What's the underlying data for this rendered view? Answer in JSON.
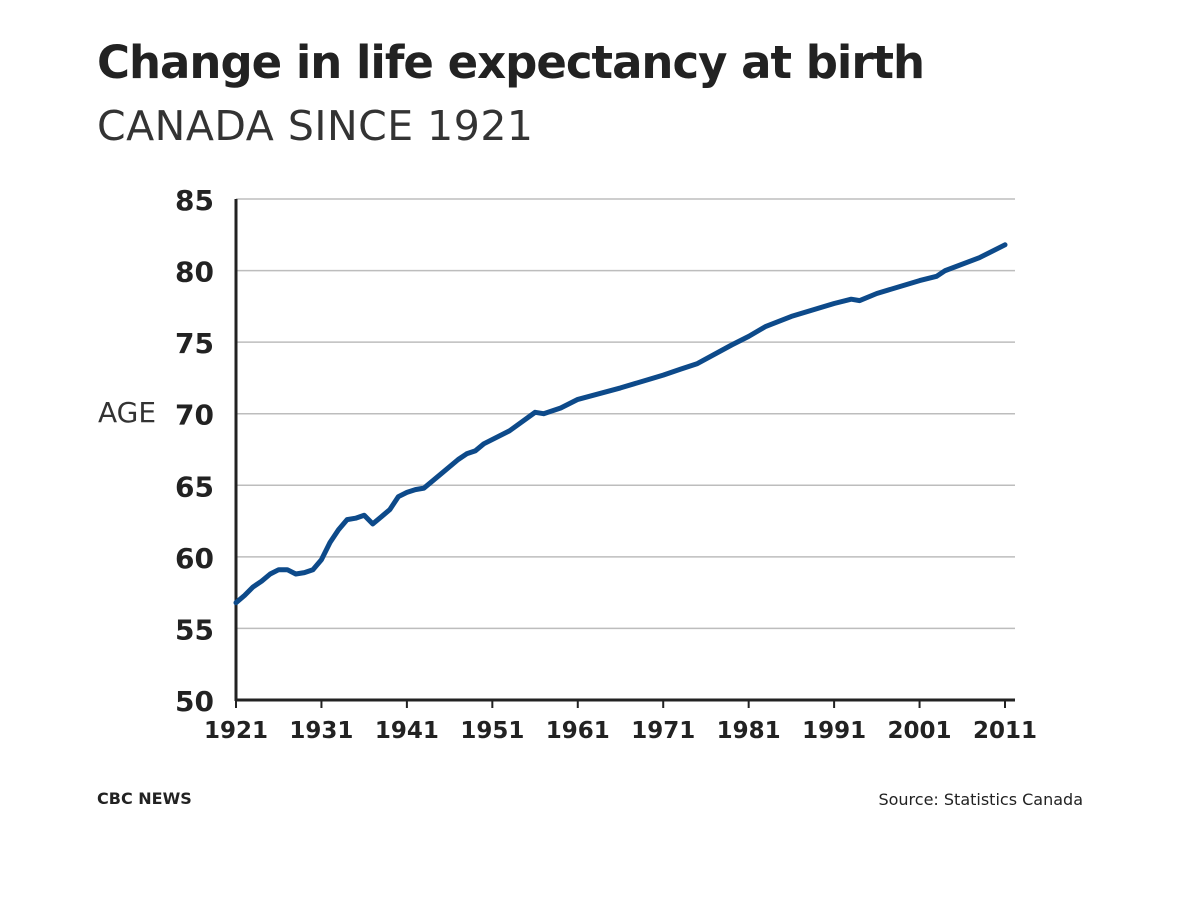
{
  "title": "Change in life expectancy at birth",
  "subtitle": "CANADA SINCE 1921",
  "brand": "CBC NEWS",
  "source": "Source: Statistics Canada",
  "colors": {
    "line": "#0d4a8a",
    "grid": "#bdbdbd",
    "axis": "#222222",
    "text": "#222222"
  },
  "chart_data": {
    "type": "line",
    "ylabel": "AGE",
    "xlabel": "",
    "xlim": [
      1921,
      2011
    ],
    "ylim": [
      50,
      85
    ],
    "xticks": [
      1921,
      1931,
      1941,
      1951,
      1961,
      1971,
      1981,
      1991,
      2001,
      2011
    ],
    "yticks": [
      50,
      55,
      60,
      65,
      70,
      75,
      80,
      85
    ],
    "grid": true,
    "series": [
      {
        "x": [
          1921,
          1922,
          1923,
          1924,
          1925,
          1926,
          1927,
          1928,
          1929,
          1930,
          1931,
          1932,
          1933,
          1934,
          1935,
          1936,
          1937,
          1938,
          1939,
          1940,
          1941,
          1942,
          1943,
          1945,
          1947,
          1948,
          1949,
          1950,
          1953,
          1956,
          1957,
          1959,
          1961,
          1966,
          1971,
          1973,
          1975,
          1979,
          1981,
          1983,
          1986,
          1991,
          1993,
          1994,
          1996,
          2001,
          2003,
          2004,
          2008,
          2011
        ],
        "values": [
          56.8,
          57.3,
          57.9,
          58.3,
          58.8,
          59.1,
          59.1,
          58.8,
          58.9,
          59.1,
          59.8,
          61.0,
          61.9,
          62.6,
          62.7,
          62.9,
          62.3,
          62.8,
          63.3,
          64.2,
          64.5,
          64.7,
          64.8,
          65.8,
          66.8,
          67.2,
          67.4,
          67.9,
          68.8,
          70.1,
          70.0,
          70.4,
          71.0,
          71.8,
          72.7,
          73.1,
          73.5,
          74.8,
          75.4,
          76.1,
          76.8,
          77.7,
          78.0,
          77.9,
          78.4,
          79.3,
          79.6,
          80.0,
          80.9,
          81.8
        ]
      }
    ]
  }
}
